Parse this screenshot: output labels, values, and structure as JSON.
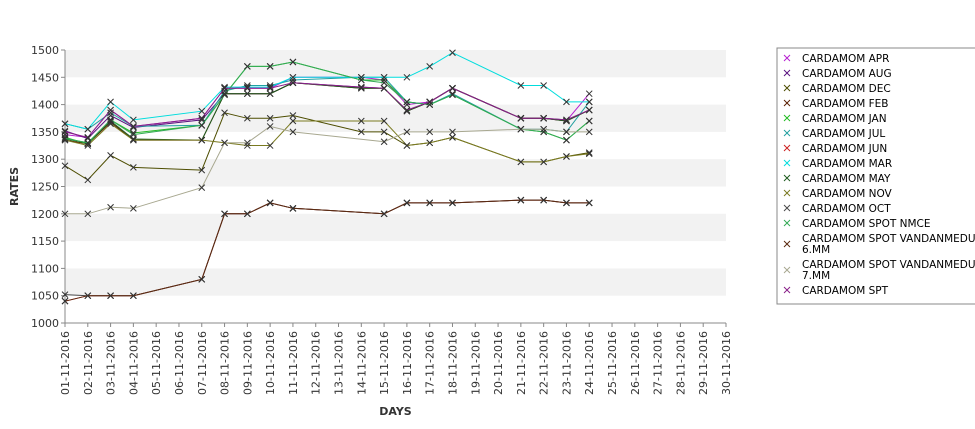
{
  "chart_data": {
    "type": "line",
    "title": "",
    "xlabel": "DAYS",
    "ylabel": "RATES",
    "ylim": [
      1000,
      1500
    ],
    "yticks": [
      1000,
      1050,
      1100,
      1150,
      1200,
      1250,
      1300,
      1350,
      1400,
      1450,
      1500
    ],
    "x": [
      "01-11-2016",
      "02-11-2016",
      "03-11-2016",
      "04-11-2016",
      "05-11-2016",
      "06-11-2016",
      "07-11-2016",
      "08-11-2016",
      "09-11-2016",
      "10-11-2016",
      "11-11-2016",
      "12-11-2016",
      "13-11-2016",
      "14-11-2016",
      "15-11-2016",
      "16-11-2016",
      "17-11-2016",
      "18-11-2016",
      "19-11-2016",
      "20-11-2016",
      "21-11-2016",
      "22-11-2016",
      "23-11-2016",
      "24-11-2016",
      "25-11-2016",
      "26-11-2016",
      "27-11-2016",
      "28-11-2016",
      "29-11-2016",
      "30-11-2016"
    ],
    "grid": true,
    "legend_position": "right",
    "series": [
      {
        "name": "CARDAMOM APR",
        "color": "#b61fd1",
        "values": [
          1345,
          1340,
          1390,
          1360,
          null,
          null,
          1375,
          1430,
          1430,
          1430,
          1450,
          null,
          null,
          1450,
          1445,
          1400,
          1405,
          1430,
          null,
          null,
          1375,
          1375,
          1370,
          1420,
          null,
          null,
          null,
          null,
          null,
          null
        ]
      },
      {
        "name": "CARDAMOM AUG",
        "color": "#5a1280",
        "values": [
          1352,
          1338,
          1380,
          1358,
          null,
          null,
          1372,
          1420,
          1420,
          1420,
          1440,
          null,
          null,
          1432,
          1430,
          1388,
          1405,
          1430,
          null,
          null,
          1375,
          1375,
          1372,
          1390,
          null,
          null,
          null,
          null,
          null,
          null
        ]
      },
      {
        "name": "CARDAMOM DEC",
        "color": "#4d4d00",
        "values": [
          1288,
          1262,
          1307,
          1285,
          null,
          null,
          1280,
          1385,
          1375,
          1375,
          1380,
          null,
          null,
          1350,
          1350,
          1325,
          1330,
          1340,
          null,
          null,
          1295,
          1295,
          1305,
          1312,
          null,
          null,
          null,
          null,
          null,
          null
        ]
      },
      {
        "name": "CARDAMOM FEB",
        "color": "#5a1f00",
        "values": [
          1335,
          1328,
          1368,
          1335,
          null,
          null,
          1335,
          1420,
          1420,
          1420,
          1440,
          null,
          null,
          1430,
          1430,
          1388,
          1405,
          1430,
          null,
          null,
          1375,
          1375,
          1370,
          1390,
          null,
          null,
          null,
          null,
          null,
          null
        ]
      },
      {
        "name": "CARDAMOM JAN",
        "color": "#22bb22",
        "values": [
          1340,
          1328,
          1372,
          1348,
          null,
          null,
          1362,
          1418,
          1470,
          1470,
          1478,
          null,
          null,
          1445,
          1445,
          1405,
          1400,
          1418,
          null,
          null,
          1355,
          1350,
          1335,
          1370,
          null,
          null,
          null,
          null,
          null,
          null
        ]
      },
      {
        "name": "CARDAMOM JUL",
        "color": "#22a0a0",
        "values": [
          1365,
          1355,
          1385,
          1360,
          null,
          null,
          1362,
          1425,
          1435,
          1435,
          1445,
          null,
          null,
          1450,
          1450,
          1405,
          1400,
          1420,
          null,
          null,
          1355,
          1355,
          1350,
          1405,
          null,
          null,
          null,
          null,
          null,
          null
        ]
      },
      {
        "name": "CARDAMOM JUN",
        "color": "#cc2222",
        "values": [
          1040,
          1050,
          1050,
          1050,
          null,
          null,
          1080,
          1200,
          1200,
          1220,
          1210,
          null,
          null,
          null,
          1200,
          1220,
          1220,
          1220,
          null,
          null,
          1225,
          1225,
          1220,
          1220,
          null,
          null,
          null,
          null,
          null,
          null
        ]
      },
      {
        "name": "CARDAMOM MAR",
        "color": "#00dddd",
        "values": [
          1365,
          1355,
          1405,
          1372,
          null,
          null,
          1388,
          1432,
          1432,
          1432,
          1450,
          null,
          null,
          1450,
          1450,
          1450,
          1470,
          1495,
          null,
          null,
          1435,
          1435,
          1405,
          1405,
          null,
          null,
          null,
          null,
          null,
          null
        ]
      },
      {
        "name": "CARDAMOM MAY",
        "color": "#1f5c1f",
        "values": [
          1337,
          1330,
          1370,
          1337,
          null,
          null,
          1335,
          1420,
          1420,
          1420,
          1440,
          null,
          null,
          1430,
          1430,
          1388,
          1405,
          1430,
          null,
          null,
          1375,
          1375,
          1370,
          1390,
          null,
          null,
          null,
          null,
          null,
          null
        ]
      },
      {
        "name": "CARDAMOM NOV",
        "color": "#7a7a20",
        "values": [
          1335,
          1325,
          1365,
          1335,
          null,
          null,
          1335,
          1330,
          1325,
          1325,
          1370,
          null,
          null,
          1370,
          1370,
          1325,
          1330,
          1340,
          null,
          null,
          1295,
          1295,
          1305,
          1310,
          null,
          null,
          null,
          null,
          null,
          null
        ]
      },
      {
        "name": "CARDAMOM OCT",
        "color": "#4a4a4a",
        "values": [
          1052,
          1050,
          1050,
          1050,
          null,
          null,
          1080,
          1200,
          1200,
          1220,
          1210,
          null,
          null,
          null,
          1200,
          1220,
          1220,
          1220,
          null,
          null,
          1225,
          1225,
          1220,
          1220,
          null,
          null,
          null,
          null,
          null,
          null
        ]
      },
      {
        "name": "CARDAMOM SPOT NMCE",
        "color": "#33aa55",
        "values": [
          1338,
          1330,
          1372,
          1345,
          null,
          null,
          1362,
          1418,
          1470,
          1470,
          1478,
          null,
          null,
          1445,
          1440,
          1405,
          1400,
          1418,
          null,
          null,
          1355,
          1350,
          1335,
          1370,
          null,
          null,
          null,
          null,
          null,
          null
        ]
      },
      {
        "name": "CARDAMOM SPOT VANDANMEDU 6.MM",
        "color": "#5a2a10",
        "values": [
          1040,
          1050,
          1050,
          1050,
          null,
          null,
          1080,
          1200,
          1200,
          1220,
          1210,
          null,
          null,
          null,
          1200,
          1220,
          1220,
          1220,
          null,
          null,
          1225,
          1225,
          1220,
          1220,
          null,
          null,
          null,
          null,
          null,
          null
        ]
      },
      {
        "name": "CARDAMOM SPOT VANDANMEDU 7.MM",
        "color": "#a8a890",
        "values": [
          1200,
          1200,
          1212,
          1210,
          null,
          null,
          1248,
          1330,
          1330,
          1360,
          1350,
          null,
          null,
          null,
          1332,
          1350,
          1350,
          1350,
          null,
          null,
          1355,
          1355,
          1350,
          1350,
          null,
          null,
          null,
          null,
          null,
          null
        ]
      },
      {
        "name": "CARDAMOM SPT",
        "color": "#8a1f8a",
        "values": [
          1350,
          1340,
          1390,
          1360,
          null,
          null,
          1375,
          1430,
          1430,
          1430,
          1440,
          null,
          null,
          1432,
          1430,
          1390,
          1405,
          1430,
          null,
          null,
          1375,
          1375,
          1372,
          1390,
          null,
          null,
          null,
          null,
          null,
          null
        ]
      }
    ]
  },
  "legend": {
    "items": [
      {
        "lines": [
          "CARDAMOM APR"
        ]
      },
      {
        "lines": [
          "CARDAMOM AUG"
        ]
      },
      {
        "lines": [
          "CARDAMOM DEC"
        ]
      },
      {
        "lines": [
          "CARDAMOM FEB"
        ]
      },
      {
        "lines": [
          "CARDAMOM JAN"
        ]
      },
      {
        "lines": [
          "CARDAMOM JUL"
        ]
      },
      {
        "lines": [
          "CARDAMOM JUN"
        ]
      },
      {
        "lines": [
          "CARDAMOM MAR"
        ]
      },
      {
        "lines": [
          "CARDAMOM MAY"
        ]
      },
      {
        "lines": [
          "CARDAMOM NOV"
        ]
      },
      {
        "lines": [
          "CARDAMOM OCT"
        ]
      },
      {
        "lines": [
          "CARDAMOM SPOT NMCE"
        ]
      },
      {
        "lines": [
          "CARDAMOM SPOT VANDANMEDU",
          "6.MM"
        ]
      },
      {
        "lines": [
          "CARDAMOM SPOT VANDANMEDU",
          "7.MM"
        ]
      },
      {
        "lines": [
          "CARDAMOM SPT"
        ]
      }
    ]
  },
  "colors": {
    "band": "#f2f2f2",
    "axis": "#888888",
    "marker": "#333333"
  }
}
